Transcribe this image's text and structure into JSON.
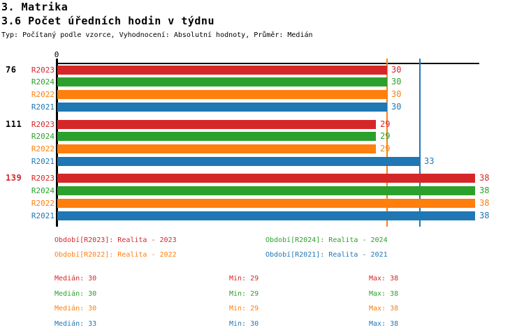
{
  "header": {
    "title_line1": "3. Matrika",
    "title_line2": "3.6 Počet úředních hodin v týdnu",
    "subtitle": "Typ: Počítaný podle vzorce, Vyhodnocení: Absolutní hodnoty, Průměr: Medián"
  },
  "palette": {
    "R2023": "#d62728",
    "R2024": "#2ca02c",
    "R2022": "#ff7f0e",
    "R2021": "#1f77b4",
    "axis": "#000000"
  },
  "chart_data": {
    "type": "bar",
    "orientation": "horizontal",
    "title": "3.6 Počet úředních hodin v týdnu",
    "xlabel": "",
    "ylabel": "",
    "xlim": [
      0,
      38.5
    ],
    "grid": false,
    "axis_origin_label": "0",
    "series_order": [
      "R2023",
      "R2024",
      "R2022",
      "R2021"
    ],
    "groups": [
      {
        "label": "76",
        "label_color": "#000000",
        "bars": [
          {
            "series": "R2023",
            "value": 30
          },
          {
            "series": "R2024",
            "value": 30
          },
          {
            "series": "R2022",
            "value": 30
          },
          {
            "series": "R2021",
            "value": 30
          }
        ]
      },
      {
        "label": "111",
        "label_color": "#000000",
        "bars": [
          {
            "series": "R2023",
            "value": 29
          },
          {
            "series": "R2024",
            "value": 29
          },
          {
            "series": "R2022",
            "value": 29
          },
          {
            "series": "R2021",
            "value": 33
          }
        ]
      },
      {
        "label": "139",
        "label_color": "#d62728",
        "bars": [
          {
            "series": "R2023",
            "value": 38
          },
          {
            "series": "R2024",
            "value": 38
          },
          {
            "series": "R2022",
            "value": 38
          },
          {
            "series": "R2021",
            "value": 38
          }
        ]
      }
    ],
    "reference_lines": [
      {
        "series": "R2022",
        "value": 30
      },
      {
        "series": "R2021",
        "value": 33
      }
    ]
  },
  "legend": {
    "items": [
      {
        "series": "R2023",
        "text": "Období[R2023]: Realita - 2023"
      },
      {
        "series": "R2024",
        "text": "Období[R2024]: Realita - 2024"
      },
      {
        "series": "R2022",
        "text": "Období[R2022]: Realita - 2022"
      },
      {
        "series": "R2021",
        "text": "Období[R2021]: Realita - 2021"
      }
    ]
  },
  "stats": {
    "rows": [
      {
        "series": "R2023",
        "median": "Medián: 30",
        "min": "Min: 29",
        "max": "Max: 38"
      },
      {
        "series": "R2024",
        "median": "Medián: 30",
        "min": "Min: 29",
        "max": "Max: 38"
      },
      {
        "series": "R2022",
        "median": "Medián: 30",
        "min": "Min: 29",
        "max": "Max: 38"
      },
      {
        "series": "R2021",
        "median": "Medián: 33",
        "min": "Min: 30",
        "max": "Max: 38"
      }
    ]
  }
}
